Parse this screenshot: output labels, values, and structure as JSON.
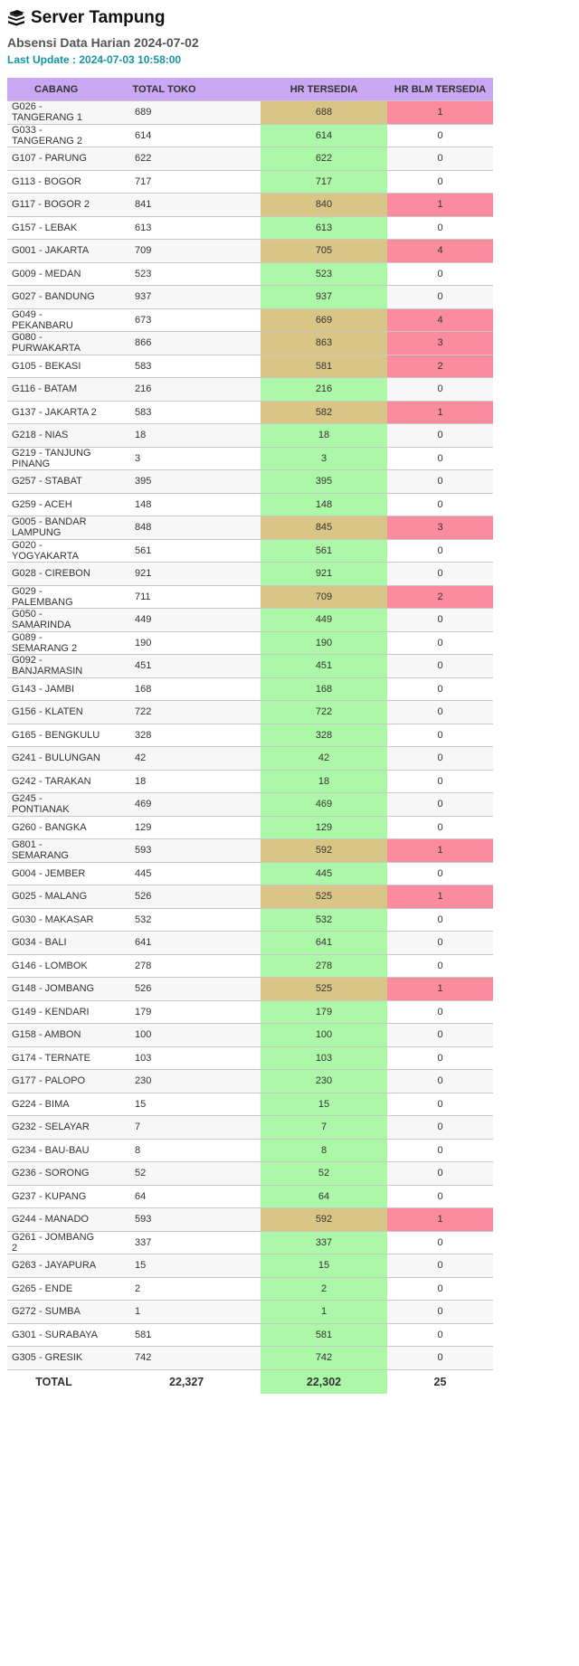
{
  "header": {
    "title": "Server Tampung",
    "icon": "books-stack-icon",
    "subtitle": "Absensi Data Harian 2024-07-02",
    "update_label": "Last Update : 2024-07-03 10:58:00"
  },
  "colors": {
    "header_bg": "#c9a7f2",
    "available": "#adf7a8",
    "partial": "#d9c686",
    "missing": "#fb8ca0",
    "update_text": "#1595a3"
  },
  "table": {
    "columns": [
      "CABANG",
      "TOTAL TOKO",
      "HR TERSEDIA",
      "HR BLM TERSEDIA"
    ],
    "rows": [
      [
        "G026 - TANGERANG 1",
        "689",
        "688",
        "1"
      ],
      [
        "G033 - TANGERANG 2",
        "614",
        "614",
        "0"
      ],
      [
        "G107 - PARUNG",
        "622",
        "622",
        "0"
      ],
      [
        "G113 - BOGOR",
        "717",
        "717",
        "0"
      ],
      [
        "G117 - BOGOR 2",
        "841",
        "840",
        "1"
      ],
      [
        "G157 - LEBAK",
        "613",
        "613",
        "0"
      ],
      [
        "G001 - JAKARTA",
        "709",
        "705",
        "4"
      ],
      [
        "G009 - MEDAN",
        "523",
        "523",
        "0"
      ],
      [
        "G027 - BANDUNG",
        "937",
        "937",
        "0"
      ],
      [
        "G049 - PEKANBARU",
        "673",
        "669",
        "4"
      ],
      [
        "G080 - PURWAKARTA",
        "866",
        "863",
        "3"
      ],
      [
        "G105 - BEKASI",
        "583",
        "581",
        "2"
      ],
      [
        "G116 - BATAM",
        "216",
        "216",
        "0"
      ],
      [
        "G137 - JAKARTA 2",
        "583",
        "582",
        "1"
      ],
      [
        "G218 - NIAS",
        "18",
        "18",
        "0"
      ],
      [
        "G219 - TANJUNG PINANG",
        "3",
        "3",
        "0"
      ],
      [
        "G257 - STABAT",
        "395",
        "395",
        "0"
      ],
      [
        "G259 - ACEH",
        "148",
        "148",
        "0"
      ],
      [
        "G005 - BANDAR LAMPUNG",
        "848",
        "845",
        "3"
      ],
      [
        "G020 - YOGYAKARTA",
        "561",
        "561",
        "0"
      ],
      [
        "G028 - CIREBON",
        "921",
        "921",
        "0"
      ],
      [
        "G029 - PALEMBANG",
        "711",
        "709",
        "2"
      ],
      [
        "G050 - SAMARINDA",
        "449",
        "449",
        "0"
      ],
      [
        "G089 - SEMARANG 2",
        "190",
        "190",
        "0"
      ],
      [
        "G092 - BANJARMASIN",
        "451",
        "451",
        "0"
      ],
      [
        "G143 - JAMBI",
        "168",
        "168",
        "0"
      ],
      [
        "G156 - KLATEN",
        "722",
        "722",
        "0"
      ],
      [
        "G165 - BENGKULU",
        "328",
        "328",
        "0"
      ],
      [
        "G241 - BULUNGAN",
        "42",
        "42",
        "0"
      ],
      [
        "G242 - TARAKAN",
        "18",
        "18",
        "0"
      ],
      [
        "G245 - PONTIANAK",
        "469",
        "469",
        "0"
      ],
      [
        "G260 - BANGKA",
        "129",
        "129",
        "0"
      ],
      [
        "G801 - SEMARANG",
        "593",
        "592",
        "1"
      ],
      [
        "G004 - JEMBER",
        "445",
        "445",
        "0"
      ],
      [
        "G025 - MALANG",
        "526",
        "525",
        "1"
      ],
      [
        "G030 - MAKASAR",
        "532",
        "532",
        "0"
      ],
      [
        "G034 - BALI",
        "641",
        "641",
        "0"
      ],
      [
        "G146 - LOMBOK",
        "278",
        "278",
        "0"
      ],
      [
        "G148 - JOMBANG",
        "526",
        "525",
        "1"
      ],
      [
        "G149 - KENDARI",
        "179",
        "179",
        "0"
      ],
      [
        "G158 - AMBON",
        "100",
        "100",
        "0"
      ],
      [
        "G174 - TERNATE",
        "103",
        "103",
        "0"
      ],
      [
        "G177 - PALOPO",
        "230",
        "230",
        "0"
      ],
      [
        "G224 - BIMA",
        "15",
        "15",
        "0"
      ],
      [
        "G232 - SELAYAR",
        "7",
        "7",
        "0"
      ],
      [
        "G234 - BAU-BAU",
        "8",
        "8",
        "0"
      ],
      [
        "G236 - SORONG",
        "52",
        "52",
        "0"
      ],
      [
        "G237 - KUPANG",
        "64",
        "64",
        "0"
      ],
      [
        "G244 - MANADO",
        "593",
        "592",
        "1"
      ],
      [
        "G261 - JOMBANG 2",
        "337",
        "337",
        "0"
      ],
      [
        "G263 - JAYAPURA",
        "15",
        "15",
        "0"
      ],
      [
        "G265 - ENDE",
        "2",
        "2",
        "0"
      ],
      [
        "G272 - SUMBA",
        "1",
        "1",
        "0"
      ],
      [
        "G301 - SURABAYA",
        "581",
        "581",
        "0"
      ],
      [
        "G305 - GRESIK",
        "742",
        "742",
        "0"
      ]
    ],
    "total": {
      "label": "TOTAL",
      "total_toko": "22,327",
      "hr_tersedia": "22,302",
      "hr_blm_tersedia": "25"
    }
  }
}
